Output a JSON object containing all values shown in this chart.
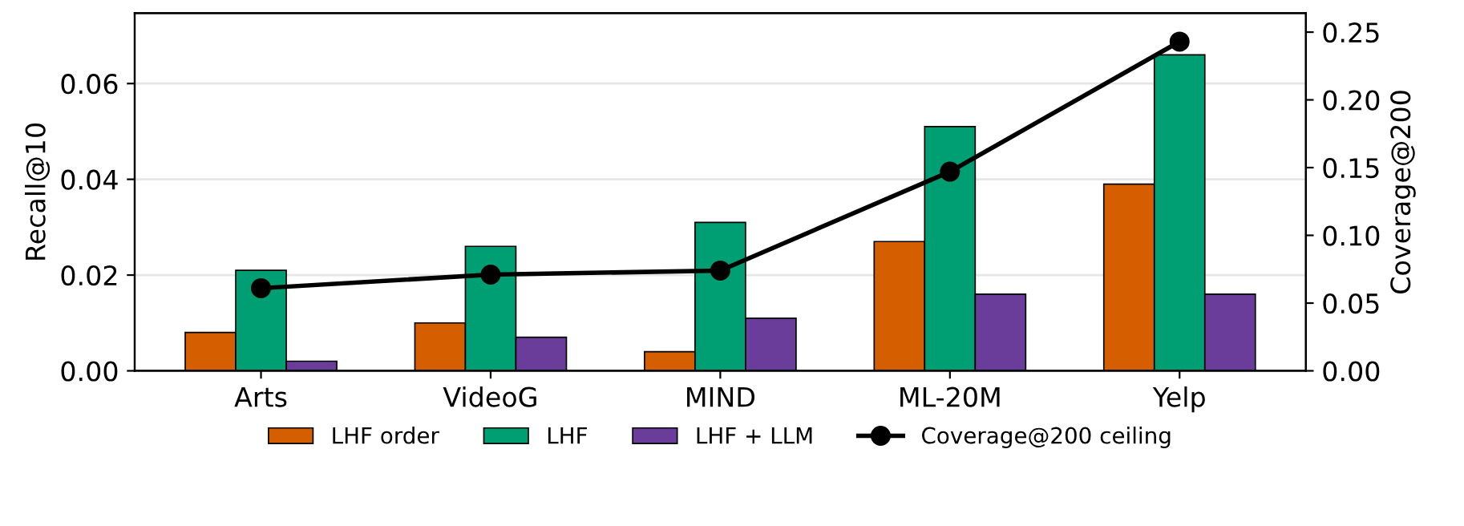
{
  "chart_data": {
    "type": "bar",
    "ylabel": "Recall@10",
    "y2label": "Coverage@200",
    "categories": [
      "Arts",
      "VideoG",
      "MIND",
      "ML-20M",
      "Yelp"
    ],
    "series": [
      {
        "name": "LHF order",
        "color": "#d55e00",
        "values": [
          0.008,
          0.01,
          0.004,
          0.027,
          0.039
        ]
      },
      {
        "name": "LHF",
        "color": "#009e73",
        "values": [
          0.021,
          0.026,
          0.031,
          0.051,
          0.066
        ]
      },
      {
        "name": "LHF + LLM",
        "color": "#6a3d9a",
        "values": [
          0.002,
          0.007,
          0.011,
          0.016,
          0.016
        ]
      },
      {
        "name": "Coverage@200 ceiling",
        "type": "line",
        "axis": "y2",
        "color": "#000000",
        "values": [
          0.061,
          0.071,
          0.074,
          0.147,
          0.243
        ]
      }
    ],
    "ylim": [
      0,
      0.0747
    ],
    "yticks": [
      {
        "value": 0,
        "label": "0.00"
      },
      0.02,
      0.04,
      0.06
    ],
    "y2lim": [
      0,
      0.264
    ],
    "y2ticks": [
      {
        "value": 0,
        "label": "0.00"
      },
      0.05,
      {
        "value": 0.1,
        "label": "0.10"
      },
      0.15,
      {
        "value": 0.2,
        "label": "0.20"
      },
      0.25
    ],
    "grid": "y",
    "legend": "bottom",
    "marker": "circle",
    "line_style": "solid"
  }
}
